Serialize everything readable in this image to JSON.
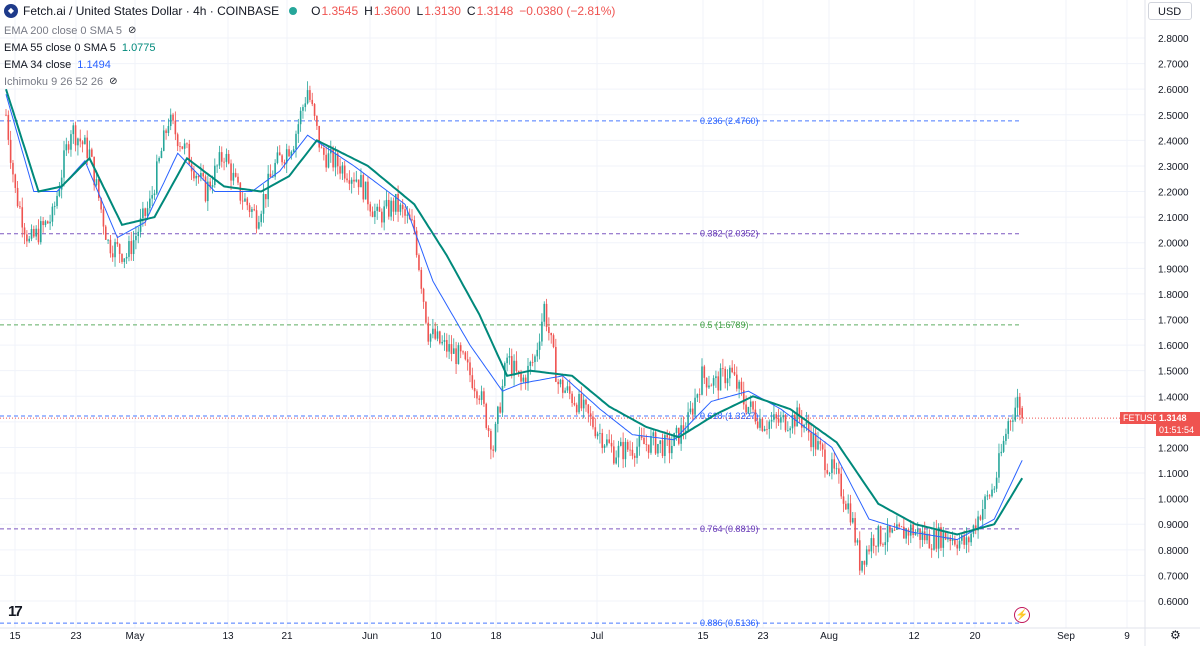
{
  "header": {
    "symbol_icon": "fetch-ai-logo",
    "title": "Fetch.ai / United States Dollar · 4h · COINBASE",
    "ohlc": [
      {
        "label": "O",
        "value": "1.3545"
      },
      {
        "label": "H",
        "value": "1.3600"
      },
      {
        "label": "L",
        "value": "1.3130"
      },
      {
        "label": "C",
        "value": "1.3148"
      }
    ],
    "change": "−0.0380 (−2.81%)"
  },
  "indicators": [
    {
      "name": "EMA 200 close 0 SMA 5",
      "value": "",
      "hidden": true
    },
    {
      "name": "EMA 55 close 0 SMA 5",
      "value": "1.0775",
      "color": "#00897b"
    },
    {
      "name": "EMA 34 close",
      "value": "1.1494",
      "color": "#2962ff"
    },
    {
      "name": "Ichimoku 9 26 52 26",
      "value": "",
      "hidden": true
    }
  ],
  "currency_button": "USD",
  "last_price": {
    "symbol": "FETUSD",
    "value": "1.3148",
    "countdown": "01:51:54",
    "color": "#ef5350"
  },
  "colors": {
    "up": "#26a69a",
    "down": "#ef5350",
    "ema55": "#00897b",
    "ema34": "#2962ff",
    "fib": "#2962ff"
  },
  "chart_data": {
    "type": "candlestick",
    "timeframe": "4h",
    "x_tick_labels": [
      "15",
      "23",
      "May",
      "13",
      "21",
      "Jun",
      "10",
      "18",
      "Jul",
      "15",
      "23",
      "Aug",
      "12",
      "20",
      "Sep",
      "9"
    ],
    "y_ticks": [
      0.6,
      0.7,
      0.8,
      0.9,
      1.0,
      1.1,
      1.2,
      1.3,
      1.4,
      1.5,
      1.6,
      1.7,
      1.8,
      1.9,
      2.0,
      2.1,
      2.2,
      2.3,
      2.4,
      2.5,
      2.6,
      2.7,
      2.8
    ],
    "y_tick_labels": [
      "0.6000",
      "0.7000",
      "0.8000",
      "0.9000",
      "1.0000",
      "1.1000",
      "1.2000",
      "1.3000",
      "1.4000",
      "1.5000",
      "1.6000",
      "1.7000",
      "1.8000",
      "1.9000",
      "2.0000",
      "2.1000",
      "2.2000",
      "2.3000",
      "2.4000",
      "2.5000",
      "2.6000",
      "2.7000",
      "2.8000"
    ],
    "ylim": [
      0.5,
      2.85
    ],
    "fib_levels": [
      {
        "label": "0.236 (2.4760)",
        "value": 2.476,
        "color": "#2962ff"
      },
      {
        "label": "0.382 (2.0352)",
        "value": 2.0352,
        "color": "#673ab7"
      },
      {
        "label": "0.5 (1.6789)",
        "value": 1.6789,
        "color": "#43a047"
      },
      {
        "label": "0.618 (1.3227)",
        "value": 1.3227,
        "color": "#2962ff"
      },
      {
        "label": "0.764 (0.8819)",
        "value": 0.8819,
        "color": "#673ab7"
      },
      {
        "label": "0.886 (0.5136)",
        "value": 0.5136,
        "color": "#2962ff"
      }
    ],
    "price_anchors": [
      [
        0,
        2.5
      ],
      [
        4,
        2.2
      ],
      [
        10,
        2.0
      ],
      [
        20,
        2.1
      ],
      [
        28,
        2.45
      ],
      [
        36,
        2.35
      ],
      [
        44,
        2.0
      ],
      [
        52,
        1.95
      ],
      [
        62,
        2.15
      ],
      [
        70,
        2.48
      ],
      [
        78,
        2.35
      ],
      [
        86,
        2.2
      ],
      [
        94,
        2.35
      ],
      [
        100,
        2.2
      ],
      [
        108,
        2.1
      ],
      [
        116,
        2.3
      ],
      [
        124,
        2.4
      ],
      [
        130,
        2.6
      ],
      [
        136,
        2.35
      ],
      [
        144,
        2.3
      ],
      [
        152,
        2.25
      ],
      [
        160,
        2.1
      ],
      [
        168,
        2.15
      ],
      [
        176,
        2.05
      ],
      [
        182,
        1.65
      ],
      [
        188,
        1.6
      ],
      [
        196,
        1.55
      ],
      [
        204,
        1.42
      ],
      [
        210,
        1.2
      ],
      [
        216,
        1.55
      ],
      [
        222,
        1.45
      ],
      [
        228,
        1.55
      ],
      [
        232,
        1.75
      ],
      [
        238,
        1.45
      ],
      [
        246,
        1.38
      ],
      [
        254,
        1.28
      ],
      [
        262,
        1.18
      ],
      [
        270,
        1.2
      ],
      [
        278,
        1.22
      ],
      [
        286,
        1.2
      ],
      [
        294,
        1.3
      ],
      [
        300,
        1.48
      ],
      [
        306,
        1.45
      ],
      [
        312,
        1.5
      ],
      [
        318,
        1.38
      ],
      [
        326,
        1.3
      ],
      [
        334,
        1.3
      ],
      [
        342,
        1.32
      ],
      [
        350,
        1.2
      ],
      [
        358,
        1.08
      ],
      [
        364,
        0.95
      ],
      [
        368,
        0.75
      ],
      [
        374,
        0.85
      ],
      [
        382,
        0.85
      ],
      [
        390,
        0.88
      ],
      [
        398,
        0.84
      ],
      [
        406,
        0.86
      ],
      [
        414,
        0.82
      ],
      [
        420,
        0.95
      ],
      [
        426,
        1.05
      ],
      [
        432,
        1.3
      ],
      [
        436,
        1.38
      ],
      [
        438,
        1.3148
      ]
    ],
    "ema34_anchors": [
      [
        0,
        2.58
      ],
      [
        12,
        2.2
      ],
      [
        22,
        2.2
      ],
      [
        34,
        2.32
      ],
      [
        48,
        2.02
      ],
      [
        60,
        2.08
      ],
      [
        74,
        2.35
      ],
      [
        90,
        2.2
      ],
      [
        106,
        2.2
      ],
      [
        118,
        2.28
      ],
      [
        130,
        2.42
      ],
      [
        150,
        2.3
      ],
      [
        172,
        2.15
      ],
      [
        184,
        1.85
      ],
      [
        200,
        1.6
      ],
      [
        214,
        1.42
      ],
      [
        222,
        1.45
      ],
      [
        240,
        1.48
      ],
      [
        256,
        1.35
      ],
      [
        270,
        1.25
      ],
      [
        288,
        1.23
      ],
      [
        304,
        1.38
      ],
      [
        320,
        1.42
      ],
      [
        334,
        1.35
      ],
      [
        356,
        1.2
      ],
      [
        372,
        0.92
      ],
      [
        390,
        0.87
      ],
      [
        410,
        0.84
      ],
      [
        426,
        0.92
      ],
      [
        438,
        1.15
      ]
    ],
    "ema55_anchors": [
      [
        0,
        2.6
      ],
      [
        14,
        2.2
      ],
      [
        24,
        2.22
      ],
      [
        36,
        2.33
      ],
      [
        50,
        2.07
      ],
      [
        64,
        2.1
      ],
      [
        78,
        2.33
      ],
      [
        94,
        2.22
      ],
      [
        110,
        2.2
      ],
      [
        122,
        2.26
      ],
      [
        134,
        2.4
      ],
      [
        156,
        2.3
      ],
      [
        176,
        2.15
      ],
      [
        190,
        1.95
      ],
      [
        204,
        1.72
      ],
      [
        216,
        1.48
      ],
      [
        226,
        1.5
      ],
      [
        244,
        1.48
      ],
      [
        260,
        1.36
      ],
      [
        276,
        1.28
      ],
      [
        290,
        1.24
      ],
      [
        306,
        1.33
      ],
      [
        322,
        1.4
      ],
      [
        338,
        1.35
      ],
      [
        358,
        1.22
      ],
      [
        376,
        0.98
      ],
      [
        392,
        0.9
      ],
      [
        410,
        0.86
      ],
      [
        426,
        0.9
      ],
      [
        438,
        1.08
      ]
    ]
  }
}
